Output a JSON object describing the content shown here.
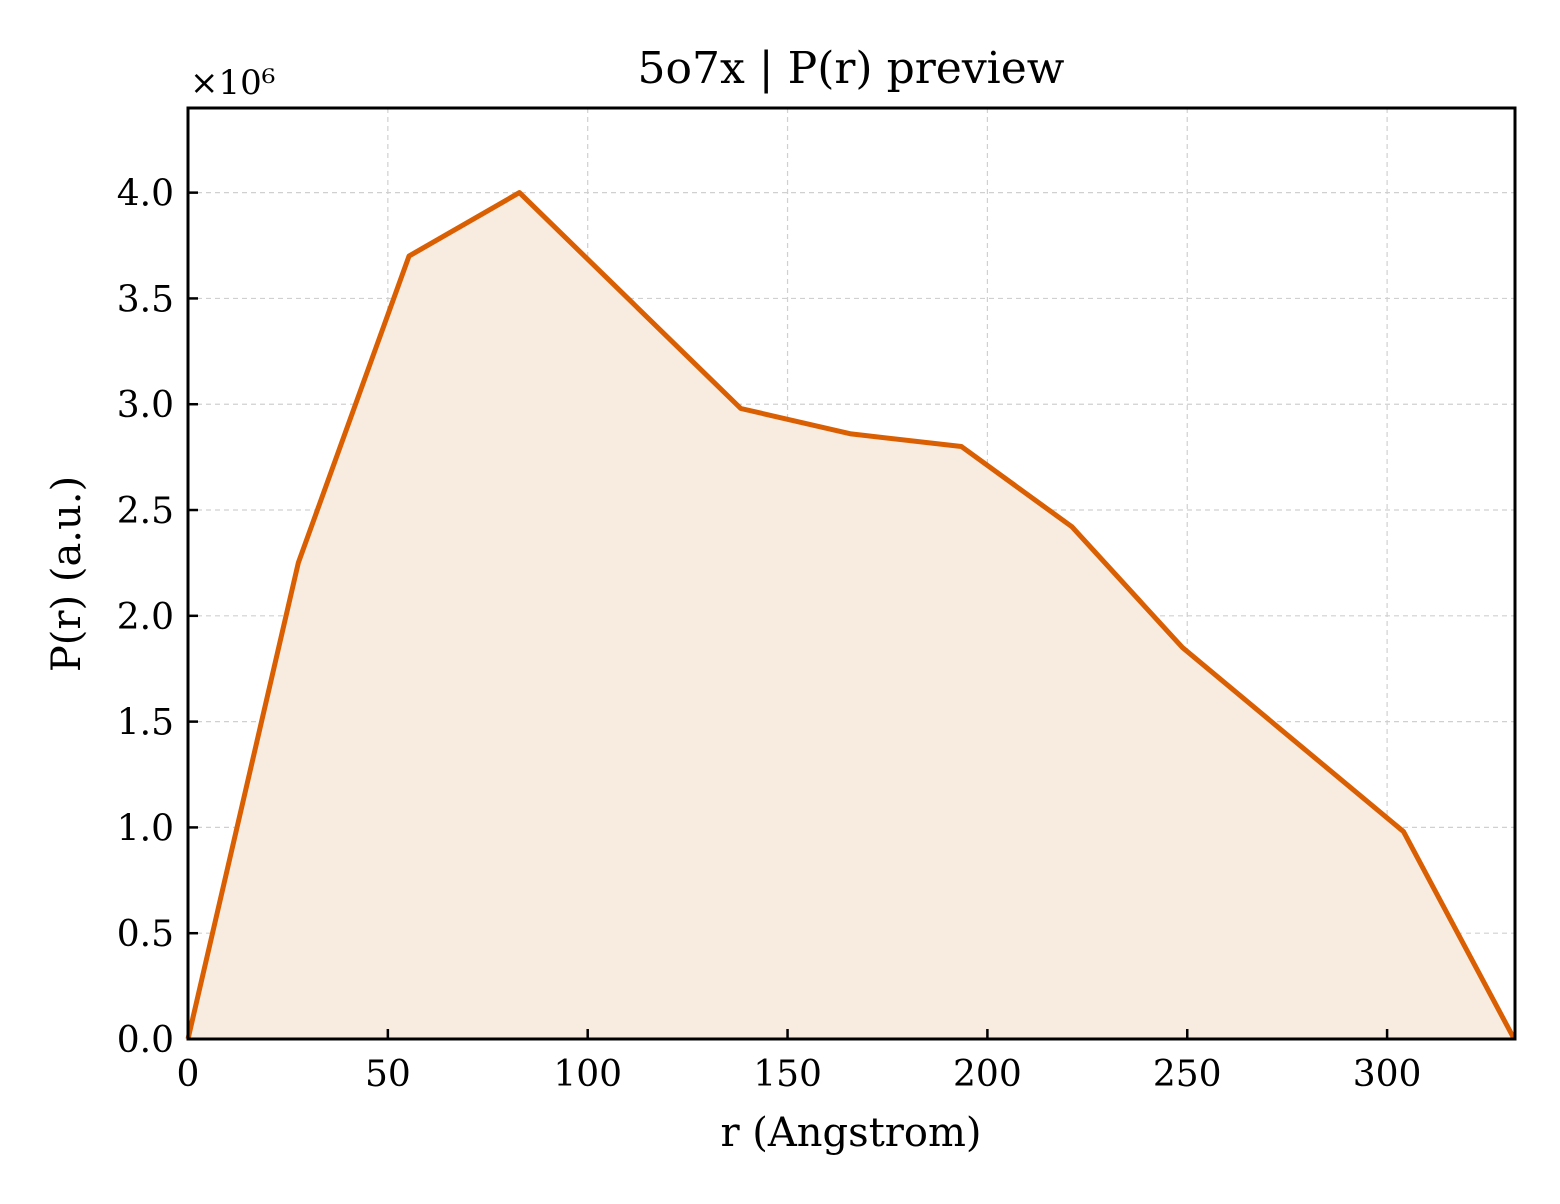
{
  "chart_data": {
    "type": "area",
    "title": "5o7x | P(r) preview",
    "xlabel": "r (Angstrom)",
    "ylabel": "P(r) (a.u.)",
    "y_multiplier_label": "×10⁶",
    "xlim": [
      0,
      332
    ],
    "ylim": [
      0,
      4400000
    ],
    "x_ticks": [
      0,
      50,
      100,
      150,
      200,
      250,
      300
    ],
    "x_tick_labels": [
      "0",
      "50",
      "100",
      "150",
      "200",
      "250",
      "300"
    ],
    "y_ticks": [
      0,
      500000,
      1000000,
      1500000,
      2000000,
      2500000,
      3000000,
      3500000,
      4000000
    ],
    "y_tick_labels": [
      "0.0",
      "0.5",
      "1.0",
      "1.5",
      "2.0",
      "2.5",
      "3.0",
      "3.5",
      "4.0"
    ],
    "grid": true,
    "series": [
      {
        "color": "#d95f02",
        "fill_color": "#f8ebe0",
        "x": [
          0,
          27.6,
          55.3,
          82.9,
          138.3,
          165.9,
          193.5,
          221.2,
          248.8,
          304.1,
          331.8
        ],
        "y": [
          0,
          2250000,
          3700000,
          4000000,
          2980000,
          2860000,
          2800000,
          2420000,
          1850000,
          980000,
          0
        ]
      }
    ]
  }
}
